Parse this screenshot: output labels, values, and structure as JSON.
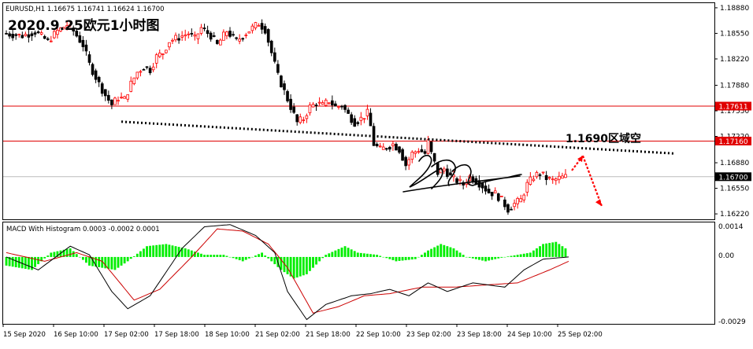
{
  "window": {
    "symbol_info": "EURUSD,H1  1.16675 1.16741 1.16624 1.16700",
    "title": "2020.9.25欧元1小时图"
  },
  "annotation": {
    "zone_label": "1.1690区域空"
  },
  "macd": {
    "label": "MACD With Histogram 0.0003 -0.0002 0.0001",
    "axis_ticks": [
      "0.0014",
      "0.00",
      "-0.0029"
    ]
  },
  "colors": {
    "bull": "#ff0000",
    "bear": "#000000",
    "hline": "#e00000",
    "price_tag_bg": "#e00000",
    "current_tag_bg": "#000000",
    "macd_hist": "#00ee00",
    "macd_line": "#000000",
    "signal_line": "#cc0000",
    "trendline": "#000000",
    "arrow": "#ff0000",
    "grid_border": "#000000"
  },
  "chart_data": {
    "type": "candlestick",
    "symbol": "EURUSD",
    "timeframe": "H1",
    "price_axis": {
      "ylim": [
        1.1615,
        1.1894
      ],
      "ticks": [
        "1.18880",
        "1.18550",
        "1.18220",
        "1.17880",
        "1.17550",
        "1.17220",
        "1.16880",
        "1.16550",
        "1.16220"
      ]
    },
    "price_tags": {
      "resistance": "1.17611",
      "support_line": "1.17160",
      "current": "1.16700"
    },
    "horizontal_lines": [
      1.17611,
      1.1716
    ],
    "current_price": 1.167,
    "time_labels": [
      "15 Sep 2020",
      "16 Sep 10:00",
      "17 Sep 02:00",
      "17 Sep 18:00",
      "18 Sep 10:00",
      "21 Sep 02:00",
      "21 Sep 18:00",
      "22 Sep 10:00",
      "23 Sep 02:00",
      "23 Sep 18:00",
      "24 Sep 10:00",
      "25 Sep 02:00"
    ],
    "price_path": [
      [
        0,
        1.1855
      ],
      [
        6,
        1.1852
      ],
      [
        10,
        1.1857
      ],
      [
        14,
        1.1845
      ],
      [
        17,
        1.1858
      ],
      [
        20,
        1.1866
      ],
      [
        22,
        1.1858
      ],
      [
        25,
        1.184
      ],
      [
        27,
        1.1815
      ],
      [
        30,
        1.179
      ],
      [
        32,
        1.1775
      ],
      [
        34,
        1.1763
      ],
      [
        36,
        1.1772
      ],
      [
        38,
        1.177
      ],
      [
        40,
        1.179
      ],
      [
        42,
        1.1805
      ],
      [
        44,
        1.1812
      ],
      [
        46,
        1.1808
      ],
      [
        48,
        1.1825
      ],
      [
        50,
        1.183
      ],
      [
        52,
        1.1845
      ],
      [
        55,
        1.185
      ],
      [
        58,
        1.1855
      ],
      [
        60,
        1.1848
      ],
      [
        62,
        1.1862
      ],
      [
        65,
        1.1852
      ],
      [
        67,
        1.184
      ],
      [
        70,
        1.1858
      ],
      [
        73,
        1.1845
      ],
      [
        75,
        1.1852
      ],
      [
        78,
        1.1862
      ],
      [
        80,
        1.1868
      ],
      [
        82,
        1.186
      ],
      [
        84,
        1.183
      ],
      [
        86,
        1.18
      ],
      [
        88,
        1.178
      ],
      [
        90,
        1.176
      ],
      [
        92,
        1.174
      ],
      [
        94,
        1.1745
      ],
      [
        96,
        1.176
      ],
      [
        98,
        1.1765
      ],
      [
        100,
        1.1762
      ],
      [
        102,
        1.1768
      ],
      [
        104,
        1.176
      ],
      [
        106,
        1.1762
      ],
      [
        108,
        1.175
      ],
      [
        110,
        1.174
      ],
      [
        112,
        1.1745
      ],
      [
        114,
        1.1752
      ],
      [
        115,
        1.1735
      ],
      [
        116,
        1.1712
      ],
      [
        118,
        1.1705
      ],
      [
        120,
        1.1708
      ],
      [
        122,
        1.1712
      ],
      [
        124,
        1.1705
      ],
      [
        126,
        1.1685
      ],
      [
        128,
        1.17
      ],
      [
        130,
        1.1705
      ],
      [
        132,
        1.17
      ],
      [
        133,
        1.1715
      ],
      [
        134,
        1.17
      ],
      [
        136,
        1.1675
      ],
      [
        138,
        1.168
      ],
      [
        140,
        1.167
      ],
      [
        142,
        1.1665
      ],
      [
        144,
        1.166
      ],
      [
        146,
        1.167
      ],
      [
        148,
        1.1665
      ],
      [
        150,
        1.1658
      ],
      [
        152,
        1.165
      ],
      [
        154,
        1.1648
      ],
      [
        156,
        1.164
      ],
      [
        158,
        1.1628
      ],
      [
        160,
        1.1635
      ],
      [
        162,
        1.164
      ],
      [
        164,
        1.166
      ],
      [
        166,
        1.167
      ],
      [
        168,
        1.1675
      ],
      [
        170,
        1.1668
      ],
      [
        172,
        1.1665
      ],
      [
        174,
        1.1668
      ],
      [
        176,
        1.167
      ]
    ],
    "macd_series": {
      "ylim": [
        -0.0031,
        0.0016
      ],
      "macd_line_path": [
        [
          0,
          0.0
        ],
        [
          10,
          -0.0006
        ],
        [
          20,
          0.0005
        ],
        [
          26,
          0.0001
        ],
        [
          33,
          -0.0016
        ],
        [
          38,
          -0.0024
        ],
        [
          45,
          -0.0018
        ],
        [
          55,
          0.0004
        ],
        [
          62,
          0.0014
        ],
        [
          70,
          0.0015
        ],
        [
          78,
          0.001
        ],
        [
          84,
          0.0002
        ],
        [
          88,
          -0.0016
        ],
        [
          94,
          -0.0029
        ],
        [
          100,
          -0.0022
        ],
        [
          108,
          -0.0018
        ],
        [
          114,
          -0.0017
        ],
        [
          120,
          -0.0015
        ],
        [
          126,
          -0.0018
        ],
        [
          132,
          -0.0012
        ],
        [
          138,
          -0.0016
        ],
        [
          146,
          -0.0012
        ],
        [
          156,
          -0.0014
        ],
        [
          162,
          -0.0006
        ],
        [
          168,
          -0.0001
        ],
        [
          176,
          0.0
        ]
      ],
      "signal_line_path": [
        [
          0,
          0.0002
        ],
        [
          12,
          -0.0002
        ],
        [
          22,
          0.0002
        ],
        [
          30,
          -0.0002
        ],
        [
          40,
          -0.002
        ],
        [
          48,
          -0.0015
        ],
        [
          58,
          0.0
        ],
        [
          66,
          0.0013
        ],
        [
          74,
          0.0012
        ],
        [
          82,
          0.0006
        ],
        [
          88,
          -0.0005
        ],
        [
          96,
          -0.0026
        ],
        [
          104,
          -0.0023
        ],
        [
          112,
          -0.0018
        ],
        [
          120,
          -0.0017
        ],
        [
          130,
          -0.0014
        ],
        [
          140,
          -0.0014
        ],
        [
          150,
          -0.0013
        ],
        [
          160,
          -0.0012
        ],
        [
          170,
          -0.0006
        ],
        [
          176,
          -0.0002
        ]
      ],
      "histogram_path": [
        [
          0,
          -0.0004
        ],
        [
          8,
          -0.0006
        ],
        [
          14,
          0.0002
        ],
        [
          20,
          0.0004
        ],
        [
          26,
          -0.0004
        ],
        [
          34,
          -0.0006
        ],
        [
          38,
          -0.0002
        ],
        [
          44,
          0.0005
        ],
        [
          50,
          0.0006
        ],
        [
          56,
          0.0004
        ],
        [
          62,
          0.0001
        ],
        [
          68,
          0.0001
        ],
        [
          74,
          -0.0002
        ],
        [
          80,
          0.0002
        ],
        [
          86,
          -0.0006
        ],
        [
          90,
          -0.001
        ],
        [
          94,
          -0.0008
        ],
        [
          100,
          0.0001
        ],
        [
          106,
          0.0005
        ],
        [
          110,
          0.0002
        ],
        [
          116,
          0.0001
        ],
        [
          122,
          -0.0002
        ],
        [
          128,
          -0.0001
        ],
        [
          132,
          0.0003
        ],
        [
          136,
          0.0006
        ],
        [
          140,
          0.0004
        ],
        [
          144,
          0.0
        ],
        [
          150,
          -0.0002
        ],
        [
          156,
          0.0
        ],
        [
          160,
          0.0001
        ],
        [
          164,
          0.0002
        ],
        [
          168,
          0.0006
        ],
        [
          172,
          0.0007
        ],
        [
          176,
          0.0003
        ]
      ]
    }
  }
}
